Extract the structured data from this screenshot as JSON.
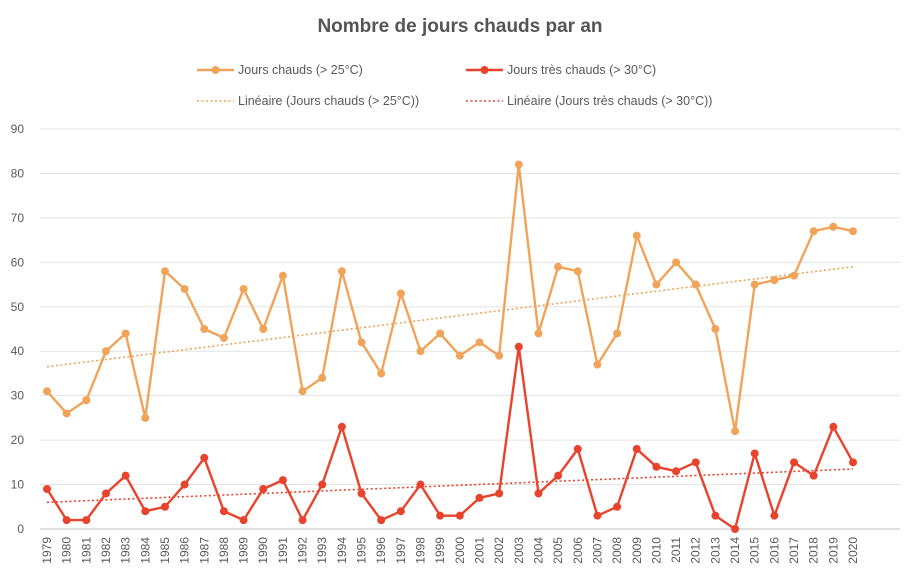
{
  "chart_data": {
    "type": "line",
    "title": "Nombre de jours chauds par an",
    "xlabel": "",
    "ylabel": "",
    "ylim": [
      0,
      90
    ],
    "yticks": [
      0,
      10,
      20,
      30,
      40,
      50,
      60,
      70,
      80,
      90
    ],
    "grid": true,
    "legend_position": "top",
    "categories": [
      "1979",
      "1980",
      "1981",
      "1982",
      "1983",
      "1984",
      "1985",
      "1986",
      "1987",
      "1988",
      "1989",
      "1990",
      "1991",
      "1992",
      "1993",
      "1994",
      "1995",
      "1996",
      "1997",
      "1998",
      "1999",
      "2000",
      "2001",
      "2002",
      "2003",
      "2004",
      "2005",
      "2006",
      "2007",
      "2008",
      "2009",
      "2010",
      "2011",
      "2012",
      "2013",
      "2014",
      "2015",
      "2016",
      "2017",
      "2018",
      "2019",
      "2020"
    ],
    "series": [
      {
        "name": "Jours chauds (> 25°C)",
        "color": "#F0A45A",
        "values": [
          31,
          26,
          29,
          40,
          44,
          25,
          58,
          54,
          45,
          43,
          54,
          45,
          57,
          31,
          34,
          58,
          42,
          35,
          53,
          40,
          44,
          39,
          42,
          39,
          82,
          44,
          59,
          58,
          37,
          44,
          66,
          55,
          60,
          55,
          45,
          22,
          55,
          56,
          57,
          67,
          68,
          67
        ]
      },
      {
        "name": "Jours très chauds (> 30°C)",
        "color": "#E8432D",
        "values": [
          9,
          2,
          2,
          8,
          12,
          4,
          5,
          10,
          16,
          4,
          2,
          9,
          11,
          2,
          10,
          23,
          8,
          2,
          4,
          10,
          3,
          3,
          7,
          8,
          41,
          8,
          12,
          18,
          3,
          5,
          18,
          14,
          13,
          15,
          3,
          0,
          17,
          3,
          15,
          12,
          23,
          15
        ]
      }
    ],
    "trendlines": [
      {
        "name": "Linéaire (Jours chauds (> 25°C))",
        "color": "#F0A45A",
        "start": 36.5,
        "end": 59.0
      },
      {
        "name": "Linéaire (Jours très chauds (> 30°C))",
        "color": "#E8432D",
        "start": 6.0,
        "end": 13.5
      }
    ]
  }
}
